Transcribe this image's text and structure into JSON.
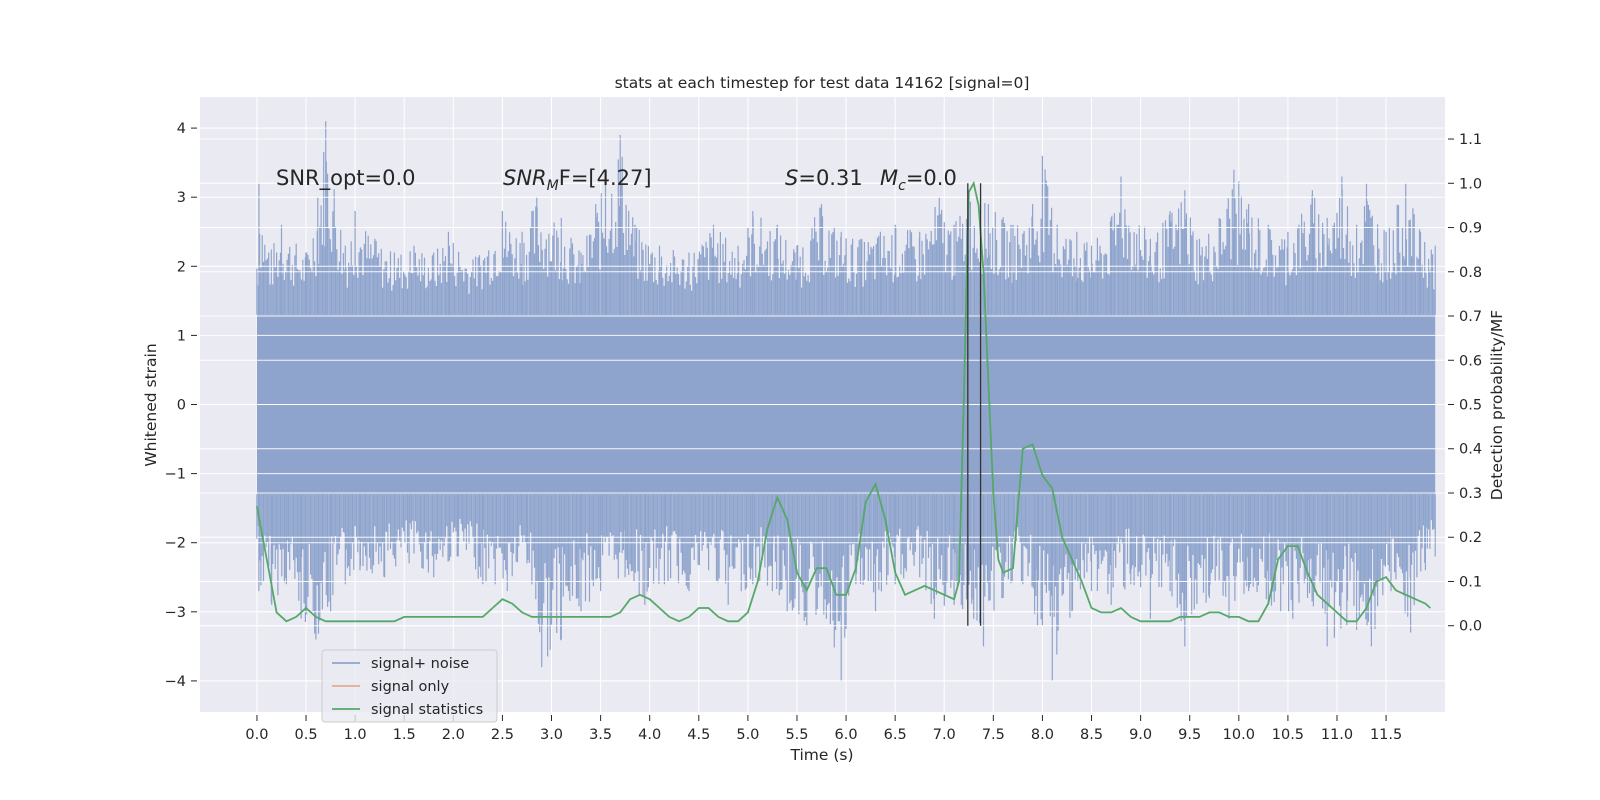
{
  "chart_data": {
    "type": "line",
    "title": "stats at each timestep for test data 14162 [signal=0]",
    "xlabel": "Time (s)",
    "ylabel": "Whitened strain",
    "y2label": "Detection probability/MF",
    "xlim": [
      -0.58,
      12.1
    ],
    "ylim": [
      -4.45,
      4.45
    ],
    "y2lim": [
      -0.195,
      1.195
    ],
    "x_ticks": [
      "0.0",
      "0.5",
      "1.0",
      "1.5",
      "2.0",
      "2.5",
      "3.0",
      "3.5",
      "4.0",
      "4.5",
      "5.0",
      "5.5",
      "6.0",
      "6.5",
      "7.0",
      "7.5",
      "8.0",
      "8.5",
      "9.0",
      "9.5",
      "10.0",
      "10.5",
      "11.0",
      "11.5"
    ],
    "y_ticks": [
      "4",
      "3",
      "2",
      "1",
      "0",
      "−1",
      "−2",
      "−3",
      "−4"
    ],
    "y2_ticks": [
      "1.1",
      "1.0",
      "0.9",
      "0.8",
      "0.7",
      "0.6",
      "0.5",
      "0.4",
      "0.3",
      "0.2",
      "0.1",
      "0.0"
    ],
    "grid": true,
    "legend_position": "lower-left",
    "annotations": {
      "snr_opt": "SNR_opt=0.0",
      "snr_mf_main": "SNR",
      "snr_mf_sub": "M",
      "snr_mf_rest": "F=[4.27]",
      "s_main": "S",
      "s_rest": "=0.31",
      "mc_main": "M",
      "mc_sub": "c",
      "mc_rest": "=0.0"
    },
    "vertical_markers": [
      7.24,
      7.37
    ],
    "series": [
      {
        "name": "signal+ noise",
        "color": "#8fa4cc",
        "envelope": {
          "x_range": [
            0.0,
            12.0
          ],
          "dense_band": [
            -1.3,
            1.3
          ],
          "peaks_pos": [
            [
              0.02,
              3.2
            ],
            [
              0.12,
              2.2
            ],
            [
              0.25,
              2.6
            ],
            [
              0.5,
              2.2
            ],
            [
              0.62,
              3.0
            ],
            [
              0.7,
              4.1
            ],
            [
              0.9,
              2.3
            ],
            [
              1.0,
              2.8
            ],
            [
              1.2,
              2.4
            ],
            [
              1.4,
              2.2
            ],
            [
              1.6,
              2.3
            ],
            [
              1.8,
              2.2
            ],
            [
              1.95,
              2.5
            ],
            [
              2.2,
              2.1
            ],
            [
              2.5,
              2.8
            ],
            [
              2.7,
              2.5
            ],
            [
              2.85,
              3.0
            ],
            [
              3.1,
              2.7
            ],
            [
              3.3,
              2.2
            ],
            [
              3.45,
              2.9
            ],
            [
              3.55,
              3.2
            ],
            [
              3.7,
              3.9
            ],
            [
              3.85,
              2.6
            ],
            [
              4.1,
              2.3
            ],
            [
              4.4,
              2.2
            ],
            [
              4.65,
              2.6
            ],
            [
              4.9,
              2.3
            ],
            [
              5.05,
              2.8
            ],
            [
              5.3,
              2.6
            ],
            [
              5.5,
              2.3
            ],
            [
              5.75,
              2.9
            ],
            [
              5.95,
              2.5
            ],
            [
              6.15,
              2.4
            ],
            [
              6.35,
              2.5
            ],
            [
              6.5,
              2.6
            ],
            [
              6.75,
              2.5
            ],
            [
              6.95,
              3.0
            ],
            [
              7.1,
              2.6
            ],
            [
              7.25,
              3.1
            ],
            [
              7.45,
              2.9
            ],
            [
              7.7,
              2.6
            ],
            [
              7.9,
              2.9
            ],
            [
              8.0,
              3.6
            ],
            [
              8.15,
              2.6
            ],
            [
              8.35,
              2.5
            ],
            [
              8.5,
              2.3
            ],
            [
              8.7,
              2.7
            ],
            [
              8.8,
              3.3
            ],
            [
              9.1,
              2.4
            ],
            [
              9.3,
              2.8
            ],
            [
              9.45,
              3.1
            ],
            [
              9.6,
              2.4
            ],
            [
              9.8,
              2.7
            ],
            [
              9.95,
              3.4
            ],
            [
              10.1,
              2.9
            ],
            [
              10.3,
              2.6
            ],
            [
              10.5,
              2.5
            ],
            [
              10.75,
              3.1
            ],
            [
              10.9,
              2.7
            ],
            [
              11.05,
              3.3
            ],
            [
              11.2,
              2.6
            ],
            [
              11.3,
              3.2
            ],
            [
              11.5,
              2.5
            ],
            [
              11.7,
              3.2
            ],
            [
              11.85,
              2.5
            ],
            [
              12.0,
              2.3
            ]
          ],
          "peaks_neg": [
            [
              0.02,
              -2.7
            ],
            [
              0.15,
              -2.9
            ],
            [
              0.3,
              -2.6
            ],
            [
              0.45,
              -3.1
            ],
            [
              0.6,
              -3.4
            ],
            [
              0.75,
              -3.0
            ],
            [
              0.9,
              -2.6
            ],
            [
              1.05,
              -2.4
            ],
            [
              1.3,
              -2.5
            ],
            [
              1.55,
              -2.3
            ],
            [
              1.8,
              -2.5
            ],
            [
              2.05,
              -2.2
            ],
            [
              2.3,
              -2.6
            ],
            [
              2.55,
              -2.7
            ],
            [
              2.75,
              -2.3
            ],
            [
              2.9,
              -3.8
            ],
            [
              3.1,
              -3.4
            ],
            [
              3.3,
              -3.0
            ],
            [
              3.5,
              -2.7
            ],
            [
              3.75,
              -2.5
            ],
            [
              3.95,
              -2.9
            ],
            [
              4.15,
              -2.6
            ],
            [
              4.4,
              -2.7
            ],
            [
              4.6,
              -2.4
            ],
            [
              4.8,
              -2.9
            ],
            [
              5.05,
              -2.6
            ],
            [
              5.25,
              -2.7
            ],
            [
              5.4,
              -3.0
            ],
            [
              5.6,
              -3.2
            ],
            [
              5.8,
              -3.1
            ],
            [
              5.95,
              -4.0
            ],
            [
              6.1,
              -2.6
            ],
            [
              6.3,
              -3.0
            ],
            [
              6.5,
              -2.6
            ],
            [
              6.75,
              -2.5
            ],
            [
              6.9,
              -3.1
            ],
            [
              7.1,
              -2.9
            ],
            [
              7.3,
              -3.1
            ],
            [
              7.4,
              -3.5
            ],
            [
              7.6,
              -2.8
            ],
            [
              7.8,
              -2.6
            ],
            [
              7.95,
              -3.2
            ],
            [
              8.1,
              -4.0
            ],
            [
              8.3,
              -3.0
            ],
            [
              8.5,
              -2.7
            ],
            [
              8.7,
              -2.9
            ],
            [
              8.9,
              -2.6
            ],
            [
              9.1,
              -3.1
            ],
            [
              9.3,
              -2.7
            ],
            [
              9.45,
              -3.5
            ],
            [
              9.7,
              -2.8
            ],
            [
              9.9,
              -3.1
            ],
            [
              10.1,
              -2.7
            ],
            [
              10.3,
              -2.9
            ],
            [
              10.55,
              -3.1
            ],
            [
              10.7,
              -2.8
            ],
            [
              10.9,
              -3.5
            ],
            [
              11.1,
              -3.2
            ],
            [
              11.35,
              -3.5
            ],
            [
              11.55,
              -2.7
            ],
            [
              11.75,
              -3.3
            ],
            [
              11.9,
              -2.4
            ],
            [
              12.0,
              -2.2
            ]
          ]
        }
      },
      {
        "name": "signal only",
        "color": "#dd8452",
        "values": []
      },
      {
        "name": "signal statistics",
        "color": "#55a868",
        "axis": "y2",
        "x": [
          0.0,
          0.1,
          0.2,
          0.3,
          0.4,
          0.5,
          0.6,
          0.7,
          0.8,
          0.9,
          1.0,
          1.1,
          1.2,
          1.3,
          1.4,
          1.5,
          1.6,
          1.7,
          1.8,
          1.9,
          2.0,
          2.1,
          2.2,
          2.3,
          2.4,
          2.5,
          2.6,
          2.7,
          2.8,
          2.9,
          3.0,
          3.1,
          3.2,
          3.3,
          3.4,
          3.5,
          3.6,
          3.7,
          3.8,
          3.9,
          4.0,
          4.1,
          4.2,
          4.3,
          4.4,
          4.5,
          4.6,
          4.7,
          4.8,
          4.9,
          5.0,
          5.1,
          5.2,
          5.3,
          5.4,
          5.5,
          5.6,
          5.7,
          5.8,
          5.9,
          6.0,
          6.1,
          6.2,
          6.3,
          6.4,
          6.5,
          6.6,
          6.7,
          6.8,
          6.9,
          7.0,
          7.1,
          7.15,
          7.2,
          7.25,
          7.3,
          7.35,
          7.4,
          7.45,
          7.5,
          7.55,
          7.6,
          7.7,
          7.8,
          7.9,
          8.0,
          8.1,
          8.2,
          8.3,
          8.4,
          8.5,
          8.6,
          8.7,
          8.8,
          8.9,
          9.0,
          9.1,
          9.2,
          9.3,
          9.4,
          9.5,
          9.6,
          9.7,
          9.8,
          9.9,
          10.0,
          10.1,
          10.2,
          10.3,
          10.4,
          10.5,
          10.6,
          10.7,
          10.8,
          10.9,
          11.0,
          11.1,
          11.2,
          11.3,
          11.4,
          11.5,
          11.6,
          11.7,
          11.8,
          11.9,
          11.95
        ],
        "values": [
          0.27,
          0.15,
          0.03,
          0.01,
          0.02,
          0.04,
          0.02,
          0.01,
          0.01,
          0.01,
          0.01,
          0.01,
          0.01,
          0.01,
          0.01,
          0.02,
          0.02,
          0.02,
          0.02,
          0.02,
          0.02,
          0.02,
          0.02,
          0.02,
          0.04,
          0.06,
          0.05,
          0.03,
          0.02,
          0.02,
          0.02,
          0.02,
          0.02,
          0.02,
          0.02,
          0.02,
          0.02,
          0.03,
          0.06,
          0.07,
          0.06,
          0.04,
          0.02,
          0.01,
          0.02,
          0.04,
          0.04,
          0.02,
          0.01,
          0.01,
          0.03,
          0.1,
          0.22,
          0.29,
          0.24,
          0.12,
          0.08,
          0.13,
          0.13,
          0.07,
          0.07,
          0.13,
          0.28,
          0.32,
          0.24,
          0.12,
          0.07,
          0.08,
          0.09,
          0.08,
          0.07,
          0.06,
          0.1,
          0.52,
          0.98,
          1.0,
          0.95,
          0.8,
          0.55,
          0.3,
          0.15,
          0.12,
          0.13,
          0.4,
          0.41,
          0.34,
          0.31,
          0.2,
          0.15,
          0.1,
          0.04,
          0.03,
          0.03,
          0.04,
          0.02,
          0.01,
          0.01,
          0.01,
          0.01,
          0.02,
          0.02,
          0.02,
          0.03,
          0.03,
          0.02,
          0.02,
          0.01,
          0.01,
          0.05,
          0.15,
          0.18,
          0.18,
          0.12,
          0.07,
          0.05,
          0.03,
          0.01,
          0.01,
          0.04,
          0.1,
          0.11,
          0.08,
          0.07,
          0.06,
          0.05,
          0.04
        ]
      }
    ]
  }
}
